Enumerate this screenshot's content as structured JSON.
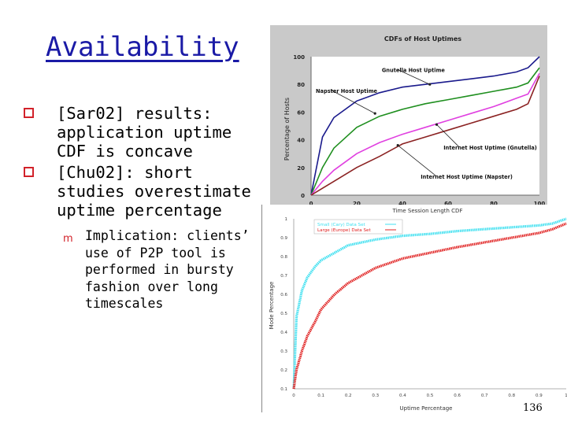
{
  "slide": {
    "title": "Availability",
    "bullets": [
      {
        "text": "[Sar02] results: application uptime CDF is concave"
      },
      {
        "text": "[Chu02]: short studies overestimate uptime percentage"
      }
    ],
    "sub_bullet": "Implication: clients’ use of P2P tool is performed in bursty fashion over long timescales",
    "page_number": "136",
    "colors": {
      "title": "#1a1aa6",
      "bullet": "#d2222a"
    }
  },
  "chart_data": [
    {
      "type": "line",
      "title": "CDFs of Host Uptimes",
      "ylabel": "Percentage of Hosts",
      "xlabel": "",
      "ylim": [
        0,
        100
      ],
      "xlim": [
        0,
        100
      ],
      "x_ticks": [
        "0",
        "20",
        "40",
        "60",
        "80",
        "100"
      ],
      "y_ticks": [
        "0",
        "20",
        "40",
        "60",
        "80",
        "100"
      ],
      "grid": false,
      "x": [
        0,
        5,
        10,
        20,
        30,
        40,
        50,
        60,
        70,
        80,
        90,
        95,
        100
      ],
      "series": [
        {
          "name": "Gnutella Host Uptime",
          "color": "#1a1a8c",
          "values": [
            0,
            42,
            56,
            68,
            74,
            78,
            80,
            82,
            84,
            86,
            89,
            92,
            100
          ]
        },
        {
          "name": "Napster Host Uptime",
          "color": "#1f8f1f",
          "values": [
            0,
            20,
            34,
            49,
            57,
            62,
            66,
            69,
            72,
            75,
            78,
            81,
            92
          ]
        },
        {
          "name": "Internet Host Uptime (Gnutella)",
          "color": "#e040e0",
          "values": [
            0,
            10,
            18,
            30,
            38,
            44,
            49,
            54,
            59,
            64,
            70,
            73,
            88
          ]
        },
        {
          "name": "Internet Host Uptime (Napster)",
          "color": "#8b2222",
          "values": [
            0,
            5,
            10,
            20,
            28,
            37,
            42,
            47,
            52,
            57,
            62,
            66,
            86
          ]
        }
      ],
      "annotations": [
        "Gnutella Host Uptime",
        "Napster Host Uptime",
        "Internet Host Uptime (Gnutella)",
        "Internet Host Uptime (Napster)"
      ]
    },
    {
      "type": "scatter",
      "title": "Time Session Length CDF",
      "ylabel": "Mode Percentage",
      "xlabel": "Uptime Percentage",
      "xlim": [
        0,
        1
      ],
      "ylim": [
        0.1,
        1
      ],
      "x_ticks": [
        "0",
        "0.1",
        "0.2",
        "0.3",
        "0.4",
        "0.5",
        "0.6",
        "0.7",
        "0.8",
        "0.9",
        "1"
      ],
      "y_ticks": [
        "0.1",
        "0.2",
        "0.3",
        "0.4",
        "0.5",
        "0.6",
        "0.7",
        "0.8",
        "0.9",
        "1"
      ],
      "legend_position": "top-left",
      "legend": [
        "Small (Cary) Data Set",
        "Large (Europe) Data Set"
      ],
      "x": [
        0,
        0.01,
        0.03,
        0.05,
        0.08,
        0.1,
        0.15,
        0.2,
        0.3,
        0.4,
        0.5,
        0.6,
        0.7,
        0.8,
        0.9,
        0.95,
        1
      ],
      "series": [
        {
          "name": "Small (Cary) Data Set",
          "color": "#40e0f0",
          "values": [
            0.1,
            0.48,
            0.62,
            0.69,
            0.75,
            0.78,
            0.82,
            0.86,
            0.89,
            0.91,
            0.92,
            0.935,
            0.945,
            0.955,
            0.965,
            0.975,
            1.0
          ]
        },
        {
          "name": "Large (Europe) Data Set",
          "color": "#e02020",
          "values": [
            0.1,
            0.2,
            0.3,
            0.38,
            0.46,
            0.52,
            0.6,
            0.66,
            0.74,
            0.79,
            0.82,
            0.85,
            0.875,
            0.9,
            0.925,
            0.945,
            0.975
          ]
        }
      ]
    }
  ]
}
